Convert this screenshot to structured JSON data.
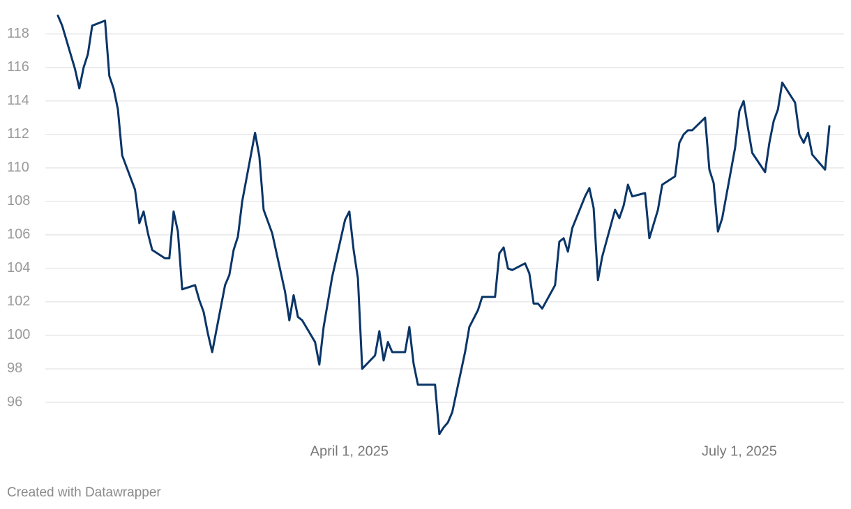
{
  "chart_data": {
    "type": "line",
    "x": [
      "2025-01-23",
      "2025-01-24",
      "2025-01-27",
      "2025-01-28",
      "2025-01-29",
      "2025-01-30",
      "2025-01-31",
      "2025-02-03",
      "2025-02-04",
      "2025-02-05",
      "2025-02-06",
      "2025-02-07",
      "2025-02-10",
      "2025-02-11",
      "2025-02-12",
      "2025-02-13",
      "2025-02-14",
      "2025-02-17",
      "2025-02-18",
      "2025-02-19",
      "2025-02-20",
      "2025-02-21",
      "2025-02-24",
      "2025-02-25",
      "2025-02-26",
      "2025-02-27",
      "2025-02-28",
      "2025-03-03",
      "2025-03-04",
      "2025-03-05",
      "2025-03-06",
      "2025-03-07",
      "2025-03-10",
      "2025-03-11",
      "2025-03-12",
      "2025-03-14",
      "2025-03-17",
      "2025-03-18",
      "2025-03-19",
      "2025-03-20",
      "2025-03-21",
      "2025-03-24",
      "2025-03-25",
      "2025-03-26",
      "2025-03-28",
      "2025-03-31",
      "2025-04-01",
      "2025-04-02",
      "2025-04-03",
      "2025-04-04",
      "2025-04-07",
      "2025-04-08",
      "2025-04-09",
      "2025-04-10",
      "2025-04-11",
      "2025-04-14",
      "2025-04-15",
      "2025-04-16",
      "2025-04-17",
      "2025-04-21",
      "2025-04-22",
      "2025-04-23",
      "2025-04-24",
      "2025-04-25",
      "2025-04-28",
      "2025-04-29",
      "2025-05-01",
      "2025-05-02",
      "2025-05-05",
      "2025-05-06",
      "2025-05-07",
      "2025-05-08",
      "2025-05-09",
      "2025-05-12",
      "2025-05-13",
      "2025-05-14",
      "2025-05-15",
      "2025-05-16",
      "2025-05-19",
      "2025-05-20",
      "2025-05-21",
      "2025-05-22",
      "2025-05-23",
      "2025-05-26",
      "2025-05-27",
      "2025-05-28",
      "2025-05-29",
      "2025-05-30",
      "2025-06-02",
      "2025-06-03",
      "2025-06-04",
      "2025-06-05",
      "2025-06-06",
      "2025-06-09",
      "2025-06-10",
      "2025-06-12",
      "2025-06-13",
      "2025-06-16",
      "2025-06-17",
      "2025-06-18",
      "2025-06-19",
      "2025-06-20",
      "2025-06-23",
      "2025-06-24",
      "2025-06-25",
      "2025-06-26",
      "2025-06-27",
      "2025-06-30",
      "2025-07-01",
      "2025-07-02",
      "2025-07-03",
      "2025-07-04",
      "2025-07-07",
      "2025-07-08",
      "2025-07-09",
      "2025-07-10",
      "2025-07-11",
      "2025-07-14",
      "2025-07-15",
      "2025-07-16",
      "2025-07-17",
      "2025-07-18",
      "2025-07-21",
      "2025-07-22"
    ],
    "series": [
      {
        "color": "#0a3568",
        "values": [
          119.1,
          118.5,
          115.9,
          114.75,
          116,
          116.8,
          118.5,
          118.8,
          115.5,
          114.75,
          113.5,
          110.75,
          108.7,
          106.7,
          107.4,
          106.1,
          105.1,
          104.6,
          104.6,
          107.4,
          106.2,
          102.75,
          103,
          102.1,
          101.4,
          100.1,
          99,
          103,
          103.6,
          105.1,
          105.9,
          108,
          112.1,
          110.7,
          107.5,
          106.1,
          102.6,
          100.9,
          102.4,
          101.1,
          100.9,
          99.6,
          98.25,
          100.5,
          103.5,
          106.9,
          107.4,
          105.1,
          103.4,
          98,
          98.8,
          100.25,
          98.5,
          99.6,
          99,
          99,
          100.5,
          98.3,
          97.05,
          97.05,
          94.1,
          94.5,
          94.8,
          95.4,
          99,
          100.5,
          101.5,
          102.3,
          102.3,
          104.9,
          105.25,
          104,
          103.9,
          104.3,
          103.7,
          101.9,
          101.9,
          101.6,
          103,
          105.6,
          105.8,
          105,
          106.4,
          108.3,
          108.8,
          107.6,
          103.3,
          104.7,
          107.5,
          107,
          107.75,
          109,
          108.3,
          108.5,
          105.8,
          107.5,
          109,
          109.5,
          111.5,
          112,
          112.25,
          112.25,
          113,
          109.9,
          109.1,
          106.2,
          107,
          111.2,
          113.4,
          114,
          112.4,
          110.9,
          109.75,
          111.5,
          112.8,
          113.5,
          115.1,
          113.9,
          112,
          111.5,
          112.1,
          110.8,
          109.9,
          112.5
        ]
      }
    ],
    "xlim": [
      "2025-01-23",
      "2025-07-22"
    ],
    "xticks": [
      {
        "value": "2025-04-01",
        "label": "April 1, 2025"
      },
      {
        "value": "2025-07-01",
        "label": "July 1, 2025"
      }
    ],
    "ylim": [
      94,
      119.2
    ],
    "yticks": [
      96,
      98,
      100,
      102,
      104,
      106,
      108,
      110,
      112,
      114,
      116,
      118
    ],
    "grid": true,
    "credit": "Created with Datawrapper"
  }
}
